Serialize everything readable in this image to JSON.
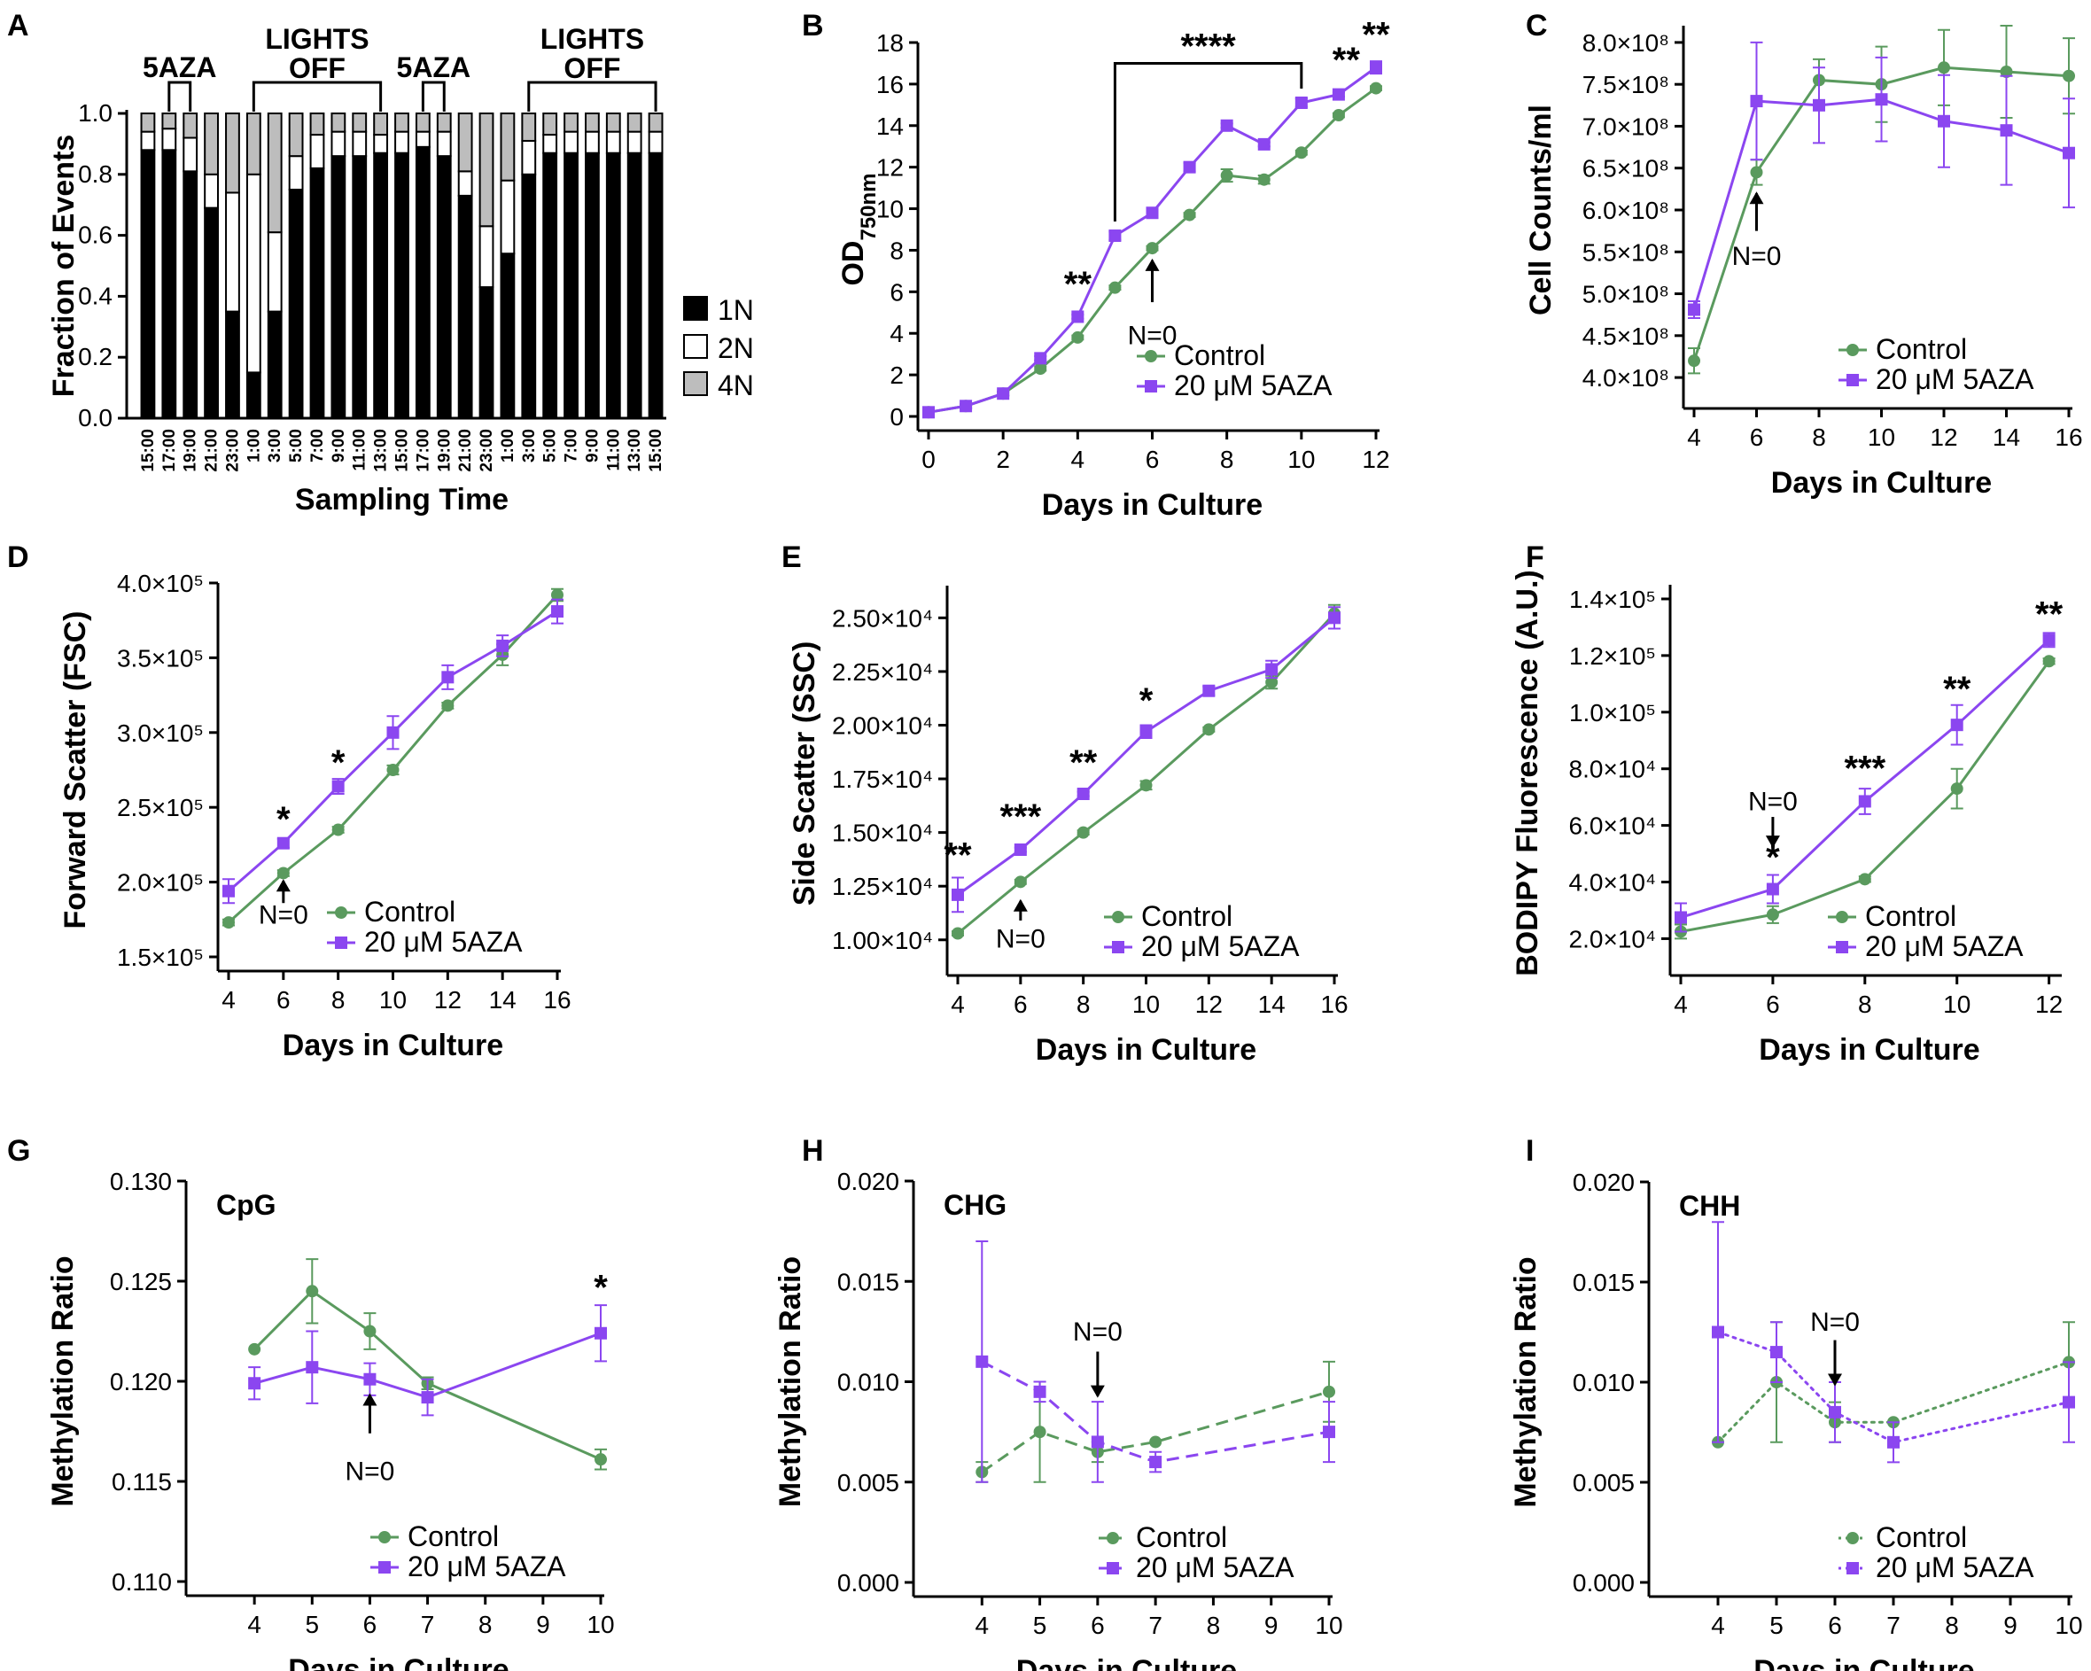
{
  "colors": {
    "control": "#5a9a5e",
    "treat": "#8b46f0",
    "axis": "#000000",
    "n1": "#000000",
    "n2": "#ffffff",
    "n4": "#bdbdbd"
  },
  "chart_data": [
    {
      "panel": "A",
      "type": "bar",
      "stacked": true,
      "xlabel": "Sampling Time",
      "ylabel": "Fraction of Events",
      "ylim": [
        0,
        1.0
      ],
      "yticks": [
        "0.0",
        "0.2",
        "0.4",
        "0.6",
        "0.8",
        "1.0"
      ],
      "categories": [
        "15:00",
        "17:00",
        "19:00",
        "21:00",
        "23:00",
        "1:00",
        "3:00",
        "5:00",
        "7:00",
        "9:00",
        "11:00",
        "13:00",
        "15:00",
        "17:00",
        "19:00",
        "21:00",
        "23:00",
        "1:00",
        "3:00",
        "5:00",
        "7:00",
        "9:00",
        "11:00",
        "13:00",
        "15:00"
      ],
      "series": [
        {
          "name": "1N",
          "values": [
            0.88,
            0.88,
            0.81,
            0.69,
            0.35,
            0.15,
            0.35,
            0.75,
            0.82,
            0.86,
            0.86,
            0.87,
            0.87,
            0.89,
            0.86,
            0.73,
            0.43,
            0.54,
            0.8,
            0.87,
            0.87,
            0.87,
            0.87,
            0.87,
            0.87
          ]
        },
        {
          "name": "2N",
          "values": [
            0.06,
            0.07,
            0.11,
            0.11,
            0.39,
            0.65,
            0.26,
            0.11,
            0.11,
            0.08,
            0.08,
            0.06,
            0.07,
            0.05,
            0.08,
            0.08,
            0.2,
            0.24,
            0.11,
            0.06,
            0.07,
            0.07,
            0.07,
            0.07,
            0.07
          ]
        },
        {
          "name": "4N",
          "values": [
            0.06,
            0.05,
            0.08,
            0.2,
            0.26,
            0.2,
            0.39,
            0.14,
            0.07,
            0.06,
            0.06,
            0.07,
            0.06,
            0.06,
            0.06,
            0.19,
            0.37,
            0.22,
            0.09,
            0.07,
            0.06,
            0.06,
            0.06,
            0.06,
            0.06
          ]
        }
      ],
      "annotations": [
        {
          "text": "5AZA",
          "from": 1,
          "to": 2
        },
        {
          "text": "LIGHTS",
          "text2": "OFF",
          "from": 5,
          "to": 11
        },
        {
          "text": "5AZA",
          "from": 13,
          "to": 14
        },
        {
          "text": "LIGHTS",
          "text2": "OFF",
          "from": 18,
          "to": 24
        }
      ]
    },
    {
      "panel": "B",
      "type": "line",
      "xlabel": "Days in Culture",
      "ylabel": "OD",
      "ylabel_sub": "750nm",
      "xlim": [
        0,
        12
      ],
      "ylim": [
        0,
        18
      ],
      "xticks": [
        0,
        2,
        4,
        6,
        8,
        10,
        12
      ],
      "yticks": [
        0,
        2,
        4,
        6,
        8,
        10,
        12,
        14,
        16,
        18
      ],
      "series": [
        {
          "name": "Control",
          "x": [
            0,
            1,
            2,
            3,
            4,
            5,
            6,
            7,
            8,
            9,
            10,
            11,
            12
          ],
          "y": [
            0.2,
            0.5,
            1.1,
            2.3,
            3.8,
            6.2,
            8.1,
            9.7,
            11.6,
            11.4,
            12.7,
            14.5,
            15.8
          ],
          "err": [
            0.1,
            0.1,
            0.1,
            0.1,
            0.1,
            0.1,
            0.1,
            0.1,
            0.3,
            0.2,
            0.1,
            0.1,
            0.1
          ]
        },
        {
          "name": "20 μM 5AZA",
          "x": [
            0,
            1,
            2,
            3,
            4,
            5,
            6,
            7,
            8,
            9,
            10,
            11,
            12
          ],
          "y": [
            0.2,
            0.5,
            1.1,
            2.8,
            4.8,
            8.7,
            9.8,
            12.0,
            14.0,
            13.1,
            15.1,
            15.5,
            16.8
          ],
          "err": [
            0.1,
            0.1,
            0.1,
            0.1,
            0.1,
            0.2,
            0.1,
            0.2,
            0.1,
            0.1,
            0.2,
            0.1,
            0.3
          ]
        }
      ],
      "stars": [
        {
          "text": "**",
          "x": 4,
          "y": 5.8
        },
        {
          "text": "**",
          "x": 11.2,
          "y": 16.6
        },
        {
          "text": "**",
          "x": 12,
          "y": 17.8
        }
      ],
      "bracket": {
        "x1": 5,
        "x2": 10,
        "y": 17,
        "text": "****"
      },
      "arrow": {
        "x": 6,
        "y_from": 5.5,
        "y_to": 7.6,
        "text": "N=0",
        "text_y": 3.9
      }
    },
    {
      "panel": "C",
      "type": "line",
      "xlabel": "Days in Culture",
      "ylabel": "Cell Counts/ml",
      "xlim": [
        4,
        16
      ],
      "ylim": [
        380000000,
        820000000
      ],
      "xticks": [
        4,
        6,
        8,
        10,
        12,
        14,
        16
      ],
      "ytick_values": [
        400000000,
        450000000,
        500000000,
        550000000,
        600000000,
        650000000,
        700000000,
        750000000,
        800000000
      ],
      "ytick_labels": [
        "4.0×10⁸",
        "4.5×10⁸",
        "5.0×10⁸",
        "5.5×10⁸",
        "6.0×10⁸",
        "6.5×10⁸",
        "7.0×10⁸",
        "7.5×10⁸",
        "8.0×10⁸"
      ],
      "series": [
        {
          "name": "Control",
          "x": [
            4,
            6,
            8,
            10,
            12,
            14,
            16
          ],
          "y": [
            420000000,
            645000000,
            755000000,
            750000000,
            770000000,
            765000000,
            760000000
          ],
          "err": [
            15000000,
            15000000,
            25000000,
            45000000,
            45000000,
            55000000,
            45000000
          ]
        },
        {
          "name": "20 μM 5AZA",
          "x": [
            4,
            6,
            8,
            10,
            12,
            14,
            16
          ],
          "y": [
            481000000,
            730000000,
            725000000,
            732000000,
            706000000,
            695000000,
            668000000
          ],
          "err": [
            10000000,
            70000000,
            45000000,
            50000000,
            55000000,
            65000000,
            65000000
          ]
        }
      ],
      "arrow": {
        "x": 6,
        "y_from": 575000000,
        "y_to": 622000000,
        "text": "N=0",
        "text_y": 545000000
      }
    },
    {
      "panel": "D",
      "type": "line",
      "xlabel": "Days in Culture",
      "ylabel": "Forward Scatter (FSC)",
      "xlim": [
        4,
        16
      ],
      "ylim": [
        150000,
        400000
      ],
      "xticks": [
        4,
        6,
        8,
        10,
        12,
        14,
        16
      ],
      "ytick_values": [
        150000,
        200000,
        250000,
        300000,
        350000,
        400000
      ],
      "ytick_labels": [
        "1.5×10⁵",
        "2.0×10⁵",
        "2.5×10⁵",
        "3.0×10⁵",
        "3.5×10⁵",
        "4.0×10⁵"
      ],
      "series": [
        {
          "name": "Control",
          "x": [
            4,
            6,
            8,
            10,
            12,
            14,
            16
          ],
          "y": [
            173000,
            206000,
            235000,
            275000,
            318000,
            352000,
            392000
          ],
          "err": [
            2000,
            2000,
            2000,
            3000,
            2000,
            7000,
            4000
          ]
        },
        {
          "name": "20 μM 5AZA",
          "x": [
            4,
            6,
            8,
            10,
            12,
            14,
            16
          ],
          "y": [
            194000,
            226000,
            264000,
            300000,
            337000,
            358000,
            381000
          ],
          "err": [
            8000,
            3000,
            5000,
            11000,
            8000,
            7000,
            8000
          ]
        }
      ],
      "stars": [
        {
          "text": "*",
          "x": 6,
          "y": 234000
        },
        {
          "text": "*",
          "x": 8,
          "y": 272000
        }
      ],
      "arrow": {
        "x": 6,
        "y_from": 186000,
        "y_to": 202000,
        "text": "N=0",
        "text_y": 178000
      }
    },
    {
      "panel": "E",
      "type": "line",
      "xlabel": "Days in Culture",
      "ylabel": "Side Scatter (SSC)",
      "xlim": [
        4,
        16
      ],
      "ylim": [
        9000,
        26500
      ],
      "xticks": [
        4,
        6,
        8,
        10,
        12,
        14,
        16
      ],
      "ytick_values": [
        10000,
        12500,
        15000,
        17500,
        20000,
        22500,
        25000
      ],
      "ytick_labels": [
        "1.00×10⁴",
        "1.25×10⁴",
        "1.50×10⁴",
        "1.75×10⁴",
        "2.00×10⁴",
        "2.25×10⁴",
        "2.50×10⁴"
      ],
      "series": [
        {
          "name": "Control",
          "x": [
            4,
            6,
            8,
            10,
            12,
            14,
            16
          ],
          "y": [
            10300,
            12700,
            15000,
            17200,
            19800,
            22000,
            25200
          ],
          "err": [
            100,
            100,
            100,
            200,
            100,
            300,
            400
          ]
        },
        {
          "name": "20 μM 5AZA",
          "x": [
            4,
            6,
            8,
            10,
            12,
            14,
            16
          ],
          "y": [
            12100,
            14200,
            16800,
            19700,
            21600,
            22600,
            25000
          ],
          "err": [
            800,
            100,
            100,
            300,
            200,
            400,
            500
          ]
        }
      ],
      "stars": [
        {
          "text": "**",
          "x": 4,
          "y": 13400
        },
        {
          "text": "***",
          "x": 6,
          "y": 15200
        },
        {
          "text": "**",
          "x": 8,
          "y": 17700
        },
        {
          "text": "*",
          "x": 10,
          "y": 20600
        }
      ],
      "arrow": {
        "x": 6,
        "y_from": 10900,
        "y_to": 11900,
        "text": "N=0",
        "text_y": 10050
      }
    },
    {
      "panel": "F",
      "type": "line",
      "xlabel": "Days in Culture",
      "ylabel": "BODIPY Fluorescence (A.U.)",
      "xlim": [
        4,
        12.2
      ],
      "ylim": [
        12000,
        145000
      ],
      "xticks": [
        4,
        6,
        8,
        10,
        12
      ],
      "ytick_values": [
        20000,
        40000,
        60000,
        80000,
        100000,
        120000,
        140000
      ],
      "ytick_labels": [
        "2.0×10⁴",
        "4.0×10⁴",
        "6.0×10⁴",
        "8.0×10⁴",
        "1.0×10⁵",
        "1.2×10⁵",
        "1.4×10⁵"
      ],
      "series": [
        {
          "name": "Control",
          "x": [
            4,
            6,
            8,
            10,
            12
          ],
          "y": [
            22500,
            28500,
            41000,
            73000,
            118000
          ],
          "err": [
            2500,
            3000,
            1000,
            7000,
            1000
          ]
        },
        {
          "name": "20 μM 5AZA",
          "x": [
            4,
            6,
            8,
            10,
            12
          ],
          "y": [
            27500,
            37500,
            68500,
            95500,
            125500
          ],
          "err": [
            5000,
            5000,
            4500,
            7000,
            2500
          ]
        }
      ],
      "stars": [
        {
          "text": "*",
          "x": 6,
          "y": 44500
        },
        {
          "text": "***",
          "x": 8,
          "y": 76000
        },
        {
          "text": "**",
          "x": 10,
          "y": 104000
        },
        {
          "text": "**",
          "x": 12,
          "y": 130500
        }
      ],
      "arrow": {
        "x": 6,
        "y_from": 63000,
        "y_to": 52000,
        "text": "N=0",
        "text_y": 68500
      }
    },
    {
      "panel": "G",
      "type": "line",
      "context": "CpG",
      "linestyle": "solid",
      "xlabel": "Days in Culture",
      "ylabel": "Methylation Ratio",
      "xlim": [
        3,
        10
      ],
      "ylim": [
        0.11,
        0.13
      ],
      "xticks": [
        4,
        5,
        6,
        7,
        8,
        9,
        10
      ],
      "ytick_values": [
        0.11,
        0.115,
        0.12,
        0.125,
        0.13
      ],
      "ytick_labels": [
        "0.110",
        "0.115",
        "0.120",
        "0.125",
        "0.130"
      ],
      "series": [
        {
          "name": "Control",
          "x": [
            4,
            5,
            6,
            7,
            10
          ],
          "y": [
            0.1216,
            0.1245,
            0.1225,
            0.1199,
            0.1161
          ],
          "err": [
            0,
            0.0016,
            0.0009,
            0.0003,
            0.0005
          ]
        },
        {
          "name": "20 μM 5AZA",
          "x": [
            4,
            5,
            6,
            7,
            10
          ],
          "y": [
            0.1199,
            0.1207,
            0.1201,
            0.1192,
            0.1224
          ],
          "err": [
            0.0008,
            0.0018,
            0.0008,
            0.0009,
            0.0014
          ]
        }
      ],
      "stars": [
        {
          "text": "*",
          "x": 10,
          "y": 0.1241
        }
      ],
      "arrow": {
        "x": 6,
        "y_from": 0.1174,
        "y_to": 0.1194,
        "text": "N=0",
        "text_y": 0.1155
      }
    },
    {
      "panel": "H",
      "type": "line",
      "context": "CHG",
      "linestyle": "dashed",
      "xlabel": "Days in Culture",
      "ylabel": "Methylation Ratio",
      "xlim": [
        3,
        10
      ],
      "ylim": [
        0.0,
        0.02
      ],
      "xticks": [
        4,
        5,
        6,
        7,
        8,
        9,
        10
      ],
      "ytick_values": [
        0.0,
        0.005,
        0.01,
        0.015,
        0.02
      ],
      "ytick_labels": [
        "0.000",
        "0.005",
        "0.010",
        "0.015",
        "0.020"
      ],
      "series": [
        {
          "name": "Control",
          "x": [
            4,
            5,
            6,
            7,
            10
          ],
          "y": [
            0.0055,
            0.0075,
            0.0065,
            0.007,
            0.0095
          ],
          "err": [
            0.0005,
            0.0025,
            0.0005,
            0,
            0.0015
          ]
        },
        {
          "name": "20 μM 5AZA",
          "x": [
            4,
            5,
            6,
            7,
            10
          ],
          "y": [
            0.011,
            0.0095,
            0.007,
            0.006,
            0.0075
          ],
          "err": [
            0.006,
            0.0005,
            0.002,
            0.0005,
            0.0015
          ]
        }
      ],
      "arrow": {
        "x": 6,
        "y_from": 0.0115,
        "y_to": 0.0092,
        "text": "N=0",
        "text_y": 0.0125
      }
    },
    {
      "panel": "I",
      "type": "line",
      "context": "CHH",
      "linestyle": "dotted",
      "xlabel": "Days in Culture",
      "ylabel": "Methylation Ratio",
      "xlim": [
        3,
        10
      ],
      "ylim": [
        0.0,
        0.02
      ],
      "xticks": [
        4,
        5,
        6,
        7,
        8,
        9,
        10
      ],
      "ytick_values": [
        0.0,
        0.005,
        0.01,
        0.015,
        0.02
      ],
      "ytick_labels": [
        "0.000",
        "0.005",
        "0.010",
        "0.015",
        "0.020"
      ],
      "series": [
        {
          "name": "Control",
          "x": [
            4,
            5,
            6,
            7,
            10
          ],
          "y": [
            0.007,
            0.01,
            0.008,
            0.008,
            0.011
          ],
          "err": [
            0,
            0.003,
            0.001,
            0,
            0.002
          ]
        },
        {
          "name": "20 μM 5AZA",
          "x": [
            4,
            5,
            6,
            7,
            10
          ],
          "y": [
            0.0125,
            0.0115,
            0.0085,
            0.007,
            0.009
          ],
          "err": [
            0.0055,
            0.0015,
            0.0015,
            0.001,
            0.002
          ]
        }
      ],
      "arrow": {
        "x": 6,
        "y_from": 0.0121,
        "y_to": 0.0098,
        "text": "N=0",
        "text_y": 0.013
      }
    }
  ]
}
